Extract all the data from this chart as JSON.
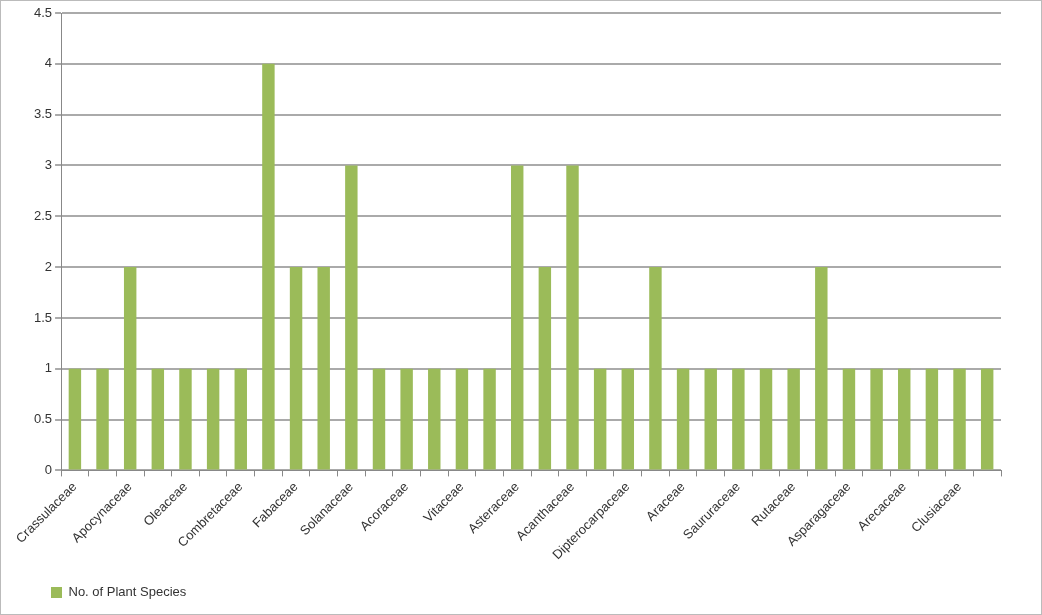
{
  "chart_data": {
    "type": "bar",
    "categories": [
      "Crassulaceae",
      null,
      "Apocynaceae",
      null,
      "Oleaceae",
      null,
      "Combretaceae",
      null,
      "Fabaceae",
      null,
      "Solanaceae",
      null,
      "Acoraceae",
      null,
      "Vitaceae",
      null,
      "Asteraceae",
      null,
      "Acanthaceae",
      null,
      "Dipterocarpaceae",
      null,
      "Araceae",
      null,
      "Saururaceae",
      null,
      "Rutaceae",
      null,
      "Asparagaceae",
      null,
      "Arecaceae",
      null,
      "Clusiaceae",
      null
    ],
    "series": [
      {
        "name": "No. of Plant Species",
        "color": "#9bbb59",
        "values": [
          1,
          1,
          2,
          1,
          1,
          1,
          1,
          4,
          2,
          2,
          3,
          1,
          1,
          1,
          1,
          1,
          3,
          2,
          3,
          1,
          1,
          2,
          1,
          1,
          1,
          1,
          1,
          2,
          1,
          1,
          1,
          1,
          1,
          1
        ]
      }
    ],
    "ylim": [
      0,
      4.5
    ],
    "yticks": [
      0,
      0.5,
      1,
      1.5,
      2,
      2.5,
      3,
      3.5,
      4,
      4.5
    ],
    "grid": "y",
    "legend": "bottom"
  }
}
